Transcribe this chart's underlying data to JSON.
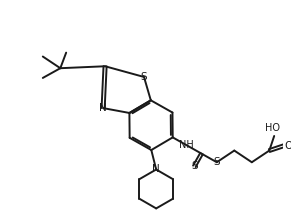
{
  "bg_color": "#ffffff",
  "line_color": "#1a1a1a",
  "lw": 1.4,
  "fs": 7.0,
  "fig_w": 2.91,
  "fig_h": 2.23,
  "dpi": 100
}
